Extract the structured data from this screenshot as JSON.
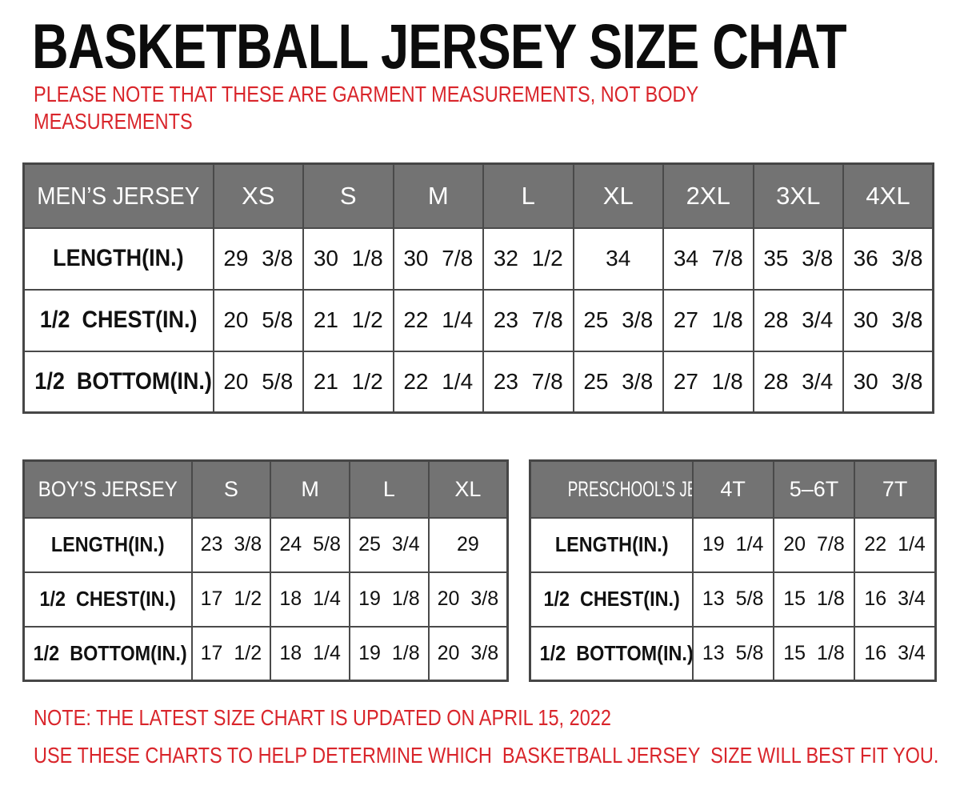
{
  "page": {
    "title": "BASKETBALL JERSEY SIZE CHAT",
    "subtitle_line1": "PLEASE NOTE THAT THESE ARE GARMENT MEASUREMENTS, NOT BODY",
    "subtitle_line2": "MEASUREMENTS",
    "footer_note1": "NOTE: THE LATEST SIZE CHART IS UPDATED ON APRIL 15, 2022",
    "footer_note2": "USE THESE CHARTS TO HELP DETERMINE WHICH  BASKETBALL JERSEY  SIZE WILL BEST FIT YOU."
  },
  "colors": {
    "header_bg": "#737373",
    "header_text": "#ffffff",
    "table_border": "#4a4a4a",
    "note_red": "#d9252b",
    "body_text": "#111111"
  },
  "chart_data": [
    {
      "type": "table",
      "title": "MEN’S JERSEY",
      "columns": [
        "XS",
        "S",
        "M",
        "L",
        "XL",
        "2XL",
        "3XL",
        "4XL"
      ],
      "rows": [
        {
          "label": "LENGTH(IN.)",
          "values": [
            "29 3/8",
            "30 1/8",
            "30 7/8",
            "32 1/2",
            "34",
            "34 7/8",
            "35 3/8",
            "36 3/8"
          ]
        },
        {
          "label": "1/2  CHEST(IN.)",
          "values": [
            "20 5/8",
            "21 1/2",
            "22 1/4",
            "23 7/8",
            "25 3/8",
            "27 1/8",
            "28 3/4",
            "30 3/8"
          ]
        },
        {
          "label": "1/2  BOTTOM(IN.)",
          "values": [
            "20 5/8",
            "21 1/2",
            "22 1/4",
            "23 7/8",
            "25 3/8",
            "27 1/8",
            "28 3/4",
            "30 3/8"
          ]
        }
      ]
    },
    {
      "type": "table",
      "title": "BOY’S JERSEY",
      "columns": [
        "S",
        "M",
        "L",
        "XL"
      ],
      "rows": [
        {
          "label": "LENGTH(IN.)",
          "values": [
            "23 3/8",
            "24 5/8",
            "25 3/4",
            "29"
          ]
        },
        {
          "label": "1/2  CHEST(IN.)",
          "values": [
            "17 1/2",
            "18 1/4",
            "19 1/8",
            "20 3/8"
          ]
        },
        {
          "label": "1/2  BOTTOM(IN.)",
          "values": [
            "17 1/2",
            "18 1/4",
            "19 1/8",
            "20 3/8"
          ]
        }
      ]
    },
    {
      "type": "table",
      "title": "PRESCHOOL’S JERSEY",
      "columns": [
        "4T",
        "5–6T",
        "7T"
      ],
      "rows": [
        {
          "label": "LENGTH(IN.)",
          "values": [
            "19 1/4",
            "20 7/8",
            "22 1/4"
          ]
        },
        {
          "label": "1/2  CHEST(IN.)",
          "values": [
            "13 5/8",
            "15 1/8",
            "16 3/4"
          ]
        },
        {
          "label": "1/2  BOTTOM(IN.)",
          "values": [
            "13 5/8",
            "15 1/8",
            "16 3/4"
          ]
        }
      ]
    }
  ]
}
